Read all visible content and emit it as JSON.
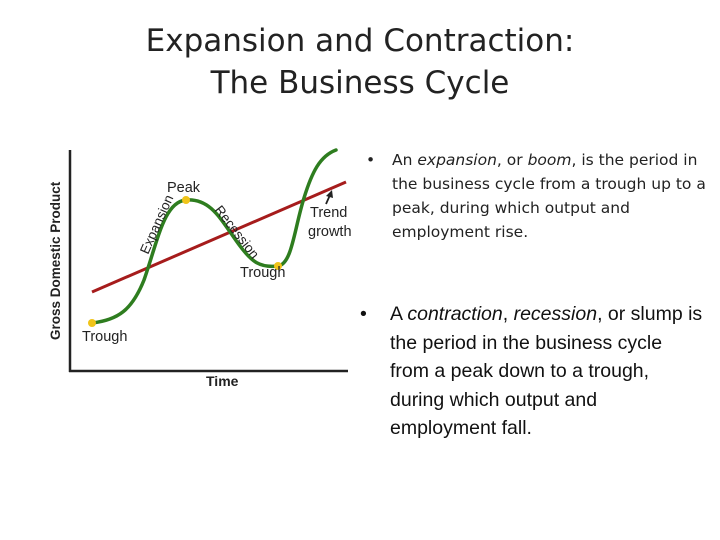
{
  "slide": {
    "title_line1": "Expansion and Contraction:",
    "title_line2": "The Business Cycle"
  },
  "diagram": {
    "y_axis_label": "Gross Domestic Product",
    "x_axis_label": "Time",
    "labels": {
      "trough_left": "Trough",
      "peak": "Peak",
      "expansion": "Expansion",
      "recession": "Recession",
      "trough_right": "Trough",
      "trend_line1": "Trend",
      "trend_line2": "growth"
    },
    "colors": {
      "cycle_curve": "#2e7d1f",
      "trend_line": "#a61c1c",
      "points": "#f0c419",
      "axes": "#222222"
    }
  },
  "bullets": [
    {
      "marker": "•",
      "parts": [
        "An ",
        "expansion",
        ", or ",
        "boom",
        ", is the period in the business cycle from a trough up to a peak, during which output and employment rise."
      ]
    },
    {
      "marker": "•",
      "parts": [
        "A ",
        "contraction",
        ", ",
        "recession",
        ", or slump is the period in the business cycle from a peak down to a trough, during which output and employment fall."
      ]
    }
  ]
}
